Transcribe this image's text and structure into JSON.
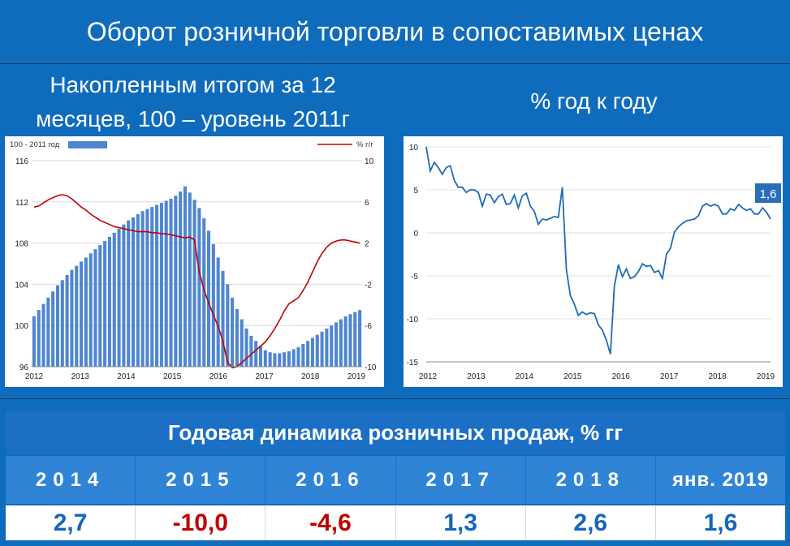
{
  "page": {
    "title": "Оборот розничной торговли в сопоставимых ценах",
    "left_subtitle_line1": "Накопленным итогом за 12",
    "left_subtitle_line2": "месяцев, 100 – уровень 2011г",
    "right_subtitle": "% год к году"
  },
  "chart_data": [
    {
      "type": "bar",
      "legend_left": "100 - 2011 год",
      "legend_right": "% г/г",
      "x_ticks": [
        "2012",
        "2013",
        "2014",
        "2015",
        "2016",
        "2017",
        "2018",
        "2019"
      ],
      "left_ticks": [
        "116",
        "112",
        "108",
        "104",
        "100",
        "96"
      ],
      "right_ticks": [
        "10",
        "6",
        "2",
        "-2",
        "-6",
        "-10"
      ],
      "ylim_left": [
        96,
        116
      ],
      "ylim_right": [
        -10,
        10
      ],
      "grid": true,
      "series": [
        {
          "name": "100 - 2011 год",
          "type": "bar",
          "color": "#4f86d0",
          "values": [
            100.9,
            101.5,
            102.1,
            102.7,
            103.3,
            103.9,
            104.4,
            104.9,
            105.4,
            105.8,
            106.2,
            106.6,
            107,
            107.4,
            107.8,
            108.2,
            108.6,
            109,
            109.4,
            109.8,
            110.2,
            110.5,
            110.8,
            111.1,
            111.3,
            111.5,
            111.7,
            111.9,
            112.1,
            112.3,
            112.6,
            113,
            113.5,
            112.9,
            112.2,
            111.4,
            110.4,
            109.2,
            107.9,
            106.6,
            105.3,
            104,
            102.7,
            101.6,
            100.6,
            99.7,
            99,
            98.5,
            98,
            97.6,
            97.4,
            97.3,
            97.3,
            97.4,
            97.5,
            97.7,
            97.9,
            98.2,
            98.5,
            98.8,
            99.1,
            99.4,
            99.7,
            100,
            100.3,
            100.6,
            100.9,
            101.1,
            101.3,
            101.5
          ]
        },
        {
          "name": "% г/г",
          "type": "line",
          "color": "#c00000",
          "values": [
            5.5,
            5.6,
            5.9,
            6.2,
            6.4,
            6.6,
            6.7,
            6.6,
            6.3,
            5.9,
            5.5,
            5.2,
            4.8,
            4.5,
            4.2,
            4,
            3.8,
            3.6,
            3.5,
            3.4,
            3.3,
            3.2,
            3.1,
            3.1,
            3.1,
            3,
            3,
            2.9,
            2.9,
            2.8,
            2.7,
            2.6,
            2.5,
            2.6,
            2.3,
            -0.8,
            -2.5,
            -3.8,
            -5,
            -6.1,
            -7.5,
            -9.6,
            -10.1,
            -10,
            -9.6,
            -9.2,
            -8.8,
            -8.4,
            -8,
            -7.6,
            -7,
            -6.3,
            -5.5,
            -4.6,
            -3.9,
            -3.6,
            -3.3,
            -2.6,
            -1.8,
            -0.8,
            0.2,
            1,
            1.6,
            2,
            2.2,
            2.3,
            2.3,
            2.2,
            2.1,
            2.0
          ]
        }
      ]
    },
    {
      "type": "line",
      "x_ticks": [
        "2012",
        "2013",
        "2014",
        "2015",
        "2016",
        "2017",
        "2018",
        "2019"
      ],
      "y_ticks": [
        "10",
        "5",
        "0",
        "-5",
        "-10",
        "-15"
      ],
      "ylim": [
        -15,
        10
      ],
      "grid": true,
      "last_label": "1,6",
      "series": [
        {
          "color": "#1f6bb5",
          "values": [
            10,
            7.2,
            8.2,
            7.6,
            6.8,
            7.6,
            7.8,
            6.1,
            5.3,
            5.3,
            4.7,
            5,
            5,
            4.7,
            3.1,
            4.5,
            4.4,
            3.5,
            4.2,
            4.5,
            3.3,
            3.4,
            4.4,
            2.9,
            4.3,
            4.6,
            3.1,
            2.5,
            1,
            1.6,
            1.5,
            1.7,
            1.9,
            1.8,
            5.3,
            -4.3,
            -7.3,
            -8.3,
            -9.6,
            -9.2,
            -9.5,
            -9.3,
            -9.4,
            -10.7,
            -11.3,
            -12.5,
            -14.1,
            -6.2,
            -3.7,
            -5.1,
            -4.2,
            -5.3,
            -5.1,
            -4.5,
            -3.6,
            -3.9,
            -3.8,
            -4.6,
            -4.4,
            -5.3,
            -2.5,
            -1.8,
            0.1,
            0.7,
            1.1,
            1.4,
            1.5,
            1.6,
            2,
            3.1,
            3.4,
            3.1,
            3.3,
            3.1,
            2.2,
            2.2,
            2.8,
            2.6,
            3.3,
            2.9,
            2.6,
            2.8,
            2.2,
            2.2,
            2.9,
            2.4,
            1.6
          ]
        }
      ]
    }
  ],
  "table": {
    "title": "Годовая динамика розничных продаж, % гг",
    "headers": [
      "2014",
      "2015",
      "2016",
      "2017",
      "2018",
      "янв. 2019"
    ],
    "values": [
      "2,7",
      "-10,0",
      "-4,6",
      "1,3",
      "2,6",
      "1,6"
    ],
    "value_colors": [
      "#1565c0",
      "#c00000",
      "#c00000",
      "#1565c0",
      "#1565c0",
      "#1565c0"
    ]
  }
}
